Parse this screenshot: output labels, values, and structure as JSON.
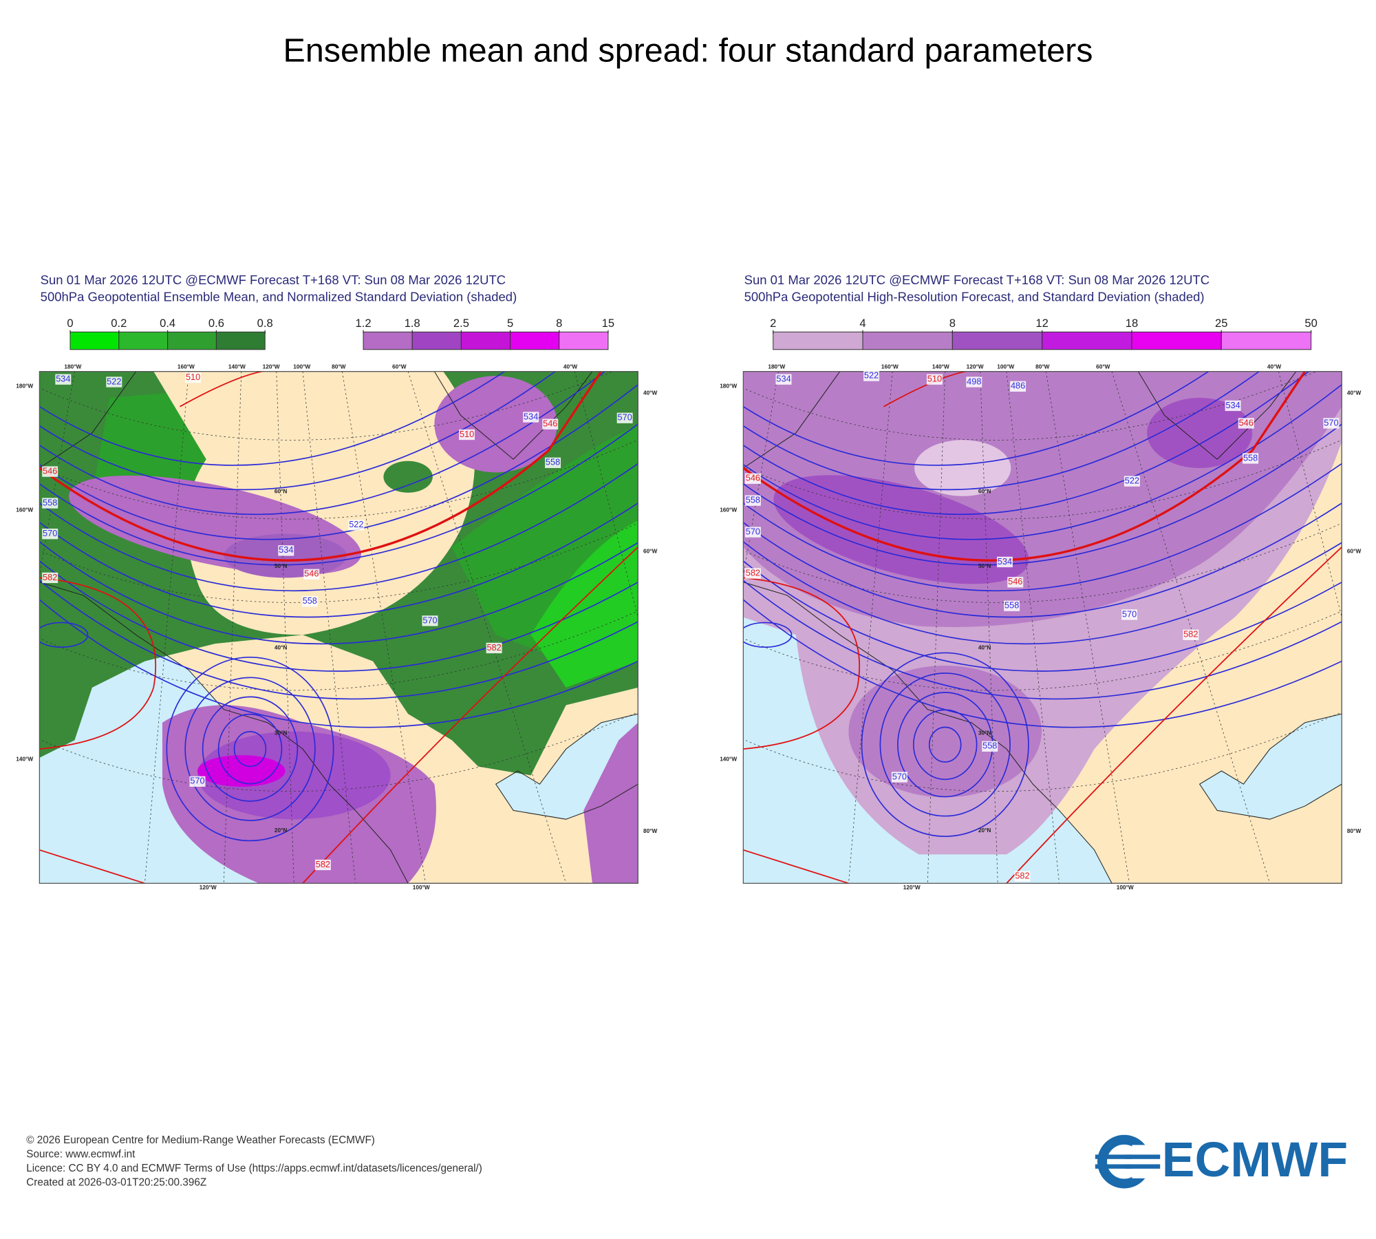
{
  "title": "Ensemble mean and spread: four standard parameters",
  "panels": [
    {
      "header": [
        "Sun 01 Mar 2026 12UTC @ECMWF Forecast T+168 VT: Sun 08 Mar 2026 12UTC",
        "500hPa Geopotential Ensemble Mean, and Normalized Standard Deviation (shaded)"
      ],
      "colorbars": [
        {
          "ticks": [
            0,
            0.2,
            0.4,
            0.6,
            0.8
          ],
          "colors": [
            "#00e600",
            "#2cb82c",
            "#2fa02f",
            "#2e7d32"
          ]
        },
        {
          "ticks": [
            1.2,
            1.8,
            2.5,
            5,
            8,
            15
          ],
          "colors": [
            "#b46cc4",
            "#a044c4",
            "#c414d8",
            "#e400f0",
            "#f070f5"
          ]
        }
      ],
      "contours": [
        {
          "value": 534,
          "color": "#3030e0"
        },
        {
          "value": 522,
          "color": "#3030e0"
        },
        {
          "value": 510,
          "color": "#e02020"
        },
        {
          "value": 546,
          "color": "#e02020"
        },
        {
          "value": 558,
          "color": "#3030e0"
        },
        {
          "value": 570,
          "color": "#3030e0"
        },
        {
          "value": 582,
          "color": "#e02020"
        },
        {
          "value": 534,
          "color": "#3030e0"
        },
        {
          "value": 546,
          "color": "#e02020"
        },
        {
          "value": 558,
          "color": "#3030e0"
        },
        {
          "value": 522,
          "color": "#3030e0"
        },
        {
          "value": 570,
          "color": "#3030e0"
        },
        {
          "value": 582,
          "color": "#e02020"
        },
        {
          "value": 534,
          "color": "#3030e0"
        },
        {
          "value": 546,
          "color": "#e02020"
        },
        {
          "value": 558,
          "color": "#3030e0"
        },
        {
          "value": 570,
          "color": "#3030e0"
        },
        {
          "value": 570,
          "color": "#3030e0"
        },
        {
          "value": 582,
          "color": "#e02020"
        },
        {
          "value": 510,
          "color": "#e02020"
        }
      ],
      "grid_labels": [
        "180°W",
        "160°W",
        "140°W",
        "40°W",
        "60°W",
        "80°W",
        "120°W",
        "100°W",
        "180°W",
        "160°W",
        "140°W",
        "120°W",
        "100°W",
        "80°W",
        "60°W",
        "40°W",
        "60°N",
        "50°N",
        "40°N",
        "30°N",
        "20°N"
      ]
    },
    {
      "header": [
        "Sun 01 Mar 2026 12UTC @ECMWF Forecast T+168 VT: Sun 08 Mar 2026 12UTC",
        "500hPa Geopotential High-Resolution Forecast, and Standard Deviation (shaded)"
      ],
      "colorbars": [
        {
          "ticks": [
            2,
            4,
            8,
            12,
            18,
            25,
            50
          ],
          "colors": [
            "#cfa8d3",
            "#b77ec7",
            "#a152c2",
            "#c21be0",
            "#e800f0",
            "#ed72f5"
          ]
        }
      ],
      "contours": [
        {
          "value": 534,
          "color": "#3030e0"
        },
        {
          "value": 522,
          "color": "#3030e0"
        },
        {
          "value": 510,
          "color": "#e02020"
        },
        {
          "value": 498,
          "color": "#3030e0"
        },
        {
          "value": 486,
          "color": "#3030e0"
        },
        {
          "value": 546,
          "color": "#e02020"
        },
        {
          "value": 558,
          "color": "#3030e0"
        },
        {
          "value": 570,
          "color": "#3030e0"
        },
        {
          "value": 582,
          "color": "#e02020"
        },
        {
          "value": 534,
          "color": "#3030e0"
        },
        {
          "value": 546,
          "color": "#e02020"
        },
        {
          "value": 558,
          "color": "#3030e0"
        },
        {
          "value": 522,
          "color": "#3030e0"
        },
        {
          "value": 570,
          "color": "#3030e0"
        },
        {
          "value": 582,
          "color": "#e02020"
        },
        {
          "value": 534,
          "color": "#3030e0"
        },
        {
          "value": 546,
          "color": "#e02020"
        },
        {
          "value": 558,
          "color": "#3030e0"
        },
        {
          "value": 570,
          "color": "#3030e0"
        },
        {
          "value": 570,
          "color": "#3030e0"
        },
        {
          "value": 558,
          "color": "#3030e0"
        },
        {
          "value": 582,
          "color": "#e02020"
        }
      ],
      "grid_labels": [
        "180°W",
        "160°W",
        "140°W",
        "40°W",
        "60°W",
        "80°W",
        "120°W",
        "100°W",
        "180°W",
        "160°W",
        "140°W",
        "120°W",
        "100°W",
        "80°W",
        "60°W",
        "40°W",
        "60°N",
        "50°N",
        "40°N",
        "30°N",
        "20°N"
      ]
    }
  ],
  "footer": [
    "© 2026 European Centre for Medium-Range Weather Forecasts (ECMWF)",
    "Source: www.ecmwf.int",
    "Licence: CC BY 4.0 and ECMWF Terms of Use (https://apps.ecmwf.int/datasets/licences/general/)",
    "Created at 2026-03-01T20:25:00.396Z"
  ],
  "logo": "ECMWF"
}
